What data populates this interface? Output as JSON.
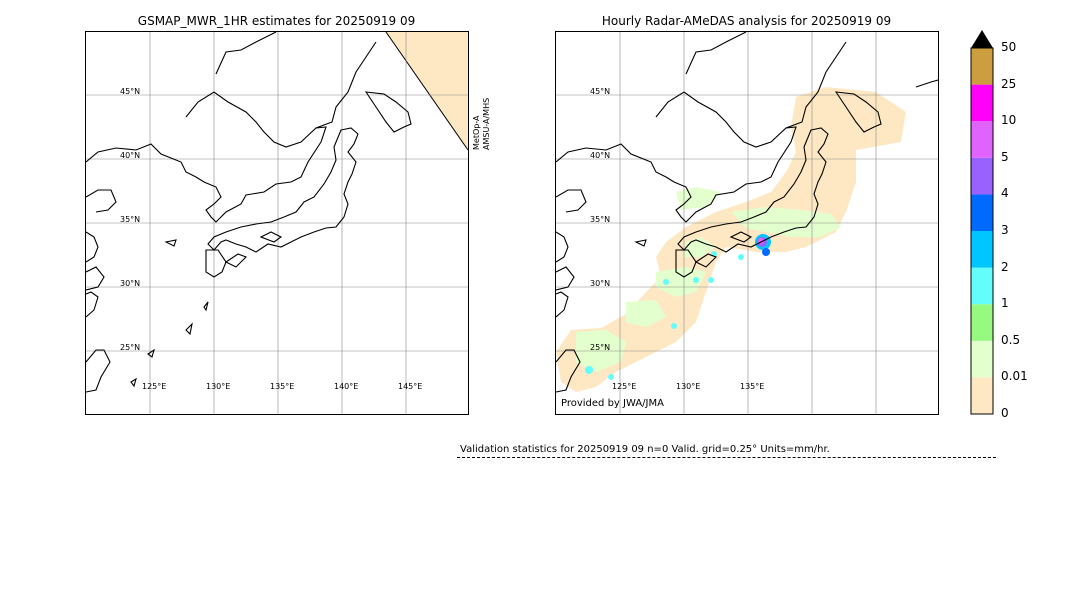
{
  "left_title": "GSMAP_MWR_1HR estimates for 20250919 09",
  "right_title": "Hourly Radar-AMeDAS analysis for 20250919 09",
  "left_sensor_labels": [
    "MetOp-A",
    "AMSU-A/MHS"
  ],
  "provided_by": "Provided by JWA/JMA",
  "validation_text": "Validation statistics for 20250919 09  n=0 Valid. grid=0.25° Units=mm/hr.",
  "lat_labels": [
    "45°N",
    "40°N",
    "35°N",
    "30°N",
    "25°N"
  ],
  "left_lon_labels": [
    "125°E",
    "130°E",
    "135°E",
    "140°E",
    "145°E"
  ],
  "right_lon_labels": [
    "125°E",
    "130°E",
    "135°E"
  ],
  "colorbar": {
    "labels": [
      "0",
      "0.01",
      "0.5",
      "1",
      "2",
      "3",
      "4",
      "5",
      "10",
      "25",
      "50"
    ],
    "colors": [
      "#fee8c3",
      "#e3ffce",
      "#95fa7f",
      "#63fefc",
      "#00c6ff",
      "#016afe",
      "#9961fe",
      "#e163fd",
      "#ff00f9",
      "#cd9e3f"
    ],
    "extend_color": "#000000"
  },
  "chart_data": [
    {
      "type": "heatmap",
      "title": "GSMAP_MWR_1HR estimates for 20250919 09",
      "lat_range": [
        20,
        50
      ],
      "lon_range": [
        120,
        150
      ],
      "lat_ticks": [
        45,
        40,
        35,
        30,
        25
      ],
      "lon_ticks": [
        125,
        130,
        135,
        140,
        145
      ],
      "units": "mm/hr",
      "precip_regions": [
        {
          "level": "0-0.01",
          "description": "swath edge area northeast corner"
        }
      ]
    },
    {
      "type": "heatmap",
      "title": "Hourly Radar-AMeDAS analysis for 20250919 09",
      "lat_range": [
        20,
        50
      ],
      "lon_range": [
        120,
        150
      ],
      "lat_ticks": [
        45,
        40,
        35,
        30,
        25
      ],
      "lon_ticks": [
        125,
        130,
        135
      ],
      "units": "mm/hr",
      "precip_regions": [
        {
          "level": "0-0.01",
          "description": "radar coverage area"
        },
        {
          "level": "0.01-0.5",
          "description": "light rain patches"
        },
        {
          "level": "1-2",
          "description": "scattered cells"
        },
        {
          "level": "3-5",
          "description": "convective cell near 136E 34N"
        }
      ]
    }
  ]
}
